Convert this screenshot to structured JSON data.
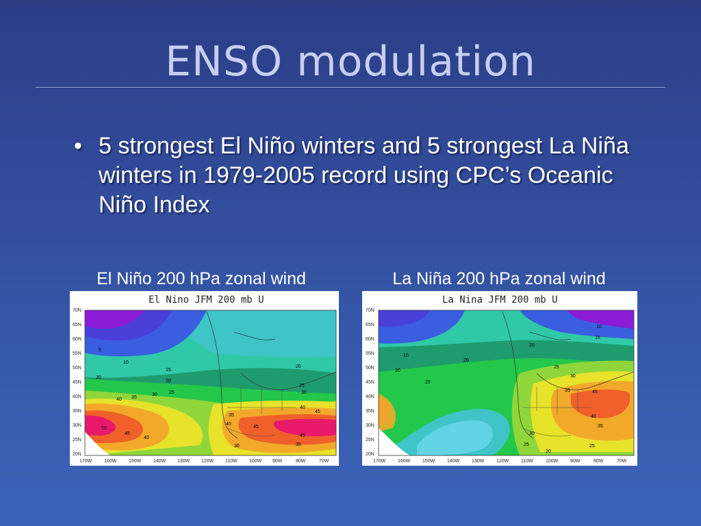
{
  "slide": {
    "title": "ENSO modulation",
    "bullet_marker": "•",
    "bullet_text": "5 strongest El Niño winters and 5 strongest La Niña winters in 1979-2005 record using CPC’s Oceanic Niño Index"
  },
  "panels": [
    {
      "caption": "El Niño 200 hPa zonal wind",
      "map_title": "El Nino JFM 200 mb U",
      "lat_labels": [
        "70N",
        "65N",
        "60N",
        "55N",
        "50N",
        "45N",
        "40N",
        "35N",
        "30N",
        "25N",
        "20N"
      ],
      "lon_labels": [
        "170W",
        "160W",
        "150W",
        "140W",
        "130W",
        "120W",
        "110W",
        "100W",
        "90W",
        "80W",
        "70W"
      ],
      "contour_labels": [
        "5",
        "10",
        "15",
        "20",
        "20",
        "25",
        "30",
        "35",
        "40",
        "40",
        "45",
        "45",
        "45",
        "50",
        "20",
        "25",
        "30",
        "35",
        "40",
        "45",
        "30",
        "35",
        "40"
      ]
    },
    {
      "caption": "La Niña 200 hPa zonal wind",
      "map_title": "La Nina JFM 200 mb U",
      "lat_labels": [
        "70N",
        "65N",
        "60N",
        "55N",
        "50N",
        "45N",
        "40N",
        "35N",
        "30N",
        "25N",
        "20N"
      ],
      "lon_labels": [
        "170W",
        "160W",
        "150W",
        "140W",
        "130W",
        "120W",
        "110W",
        "100W",
        "90W",
        "80W",
        "70W"
      ],
      "contour_labels": [
        "15",
        "20",
        "25",
        "20",
        "10",
        "15",
        "20",
        "25",
        "30",
        "35",
        "40",
        "45",
        "35",
        "30",
        "25",
        "20",
        "25"
      ]
    }
  ],
  "colors": {
    "title": "#c6cff0",
    "bullet_text": "#ffffff",
    "contour_fill_low": "#8b1bd6",
    "contour_fill_high": "#e8196a"
  }
}
